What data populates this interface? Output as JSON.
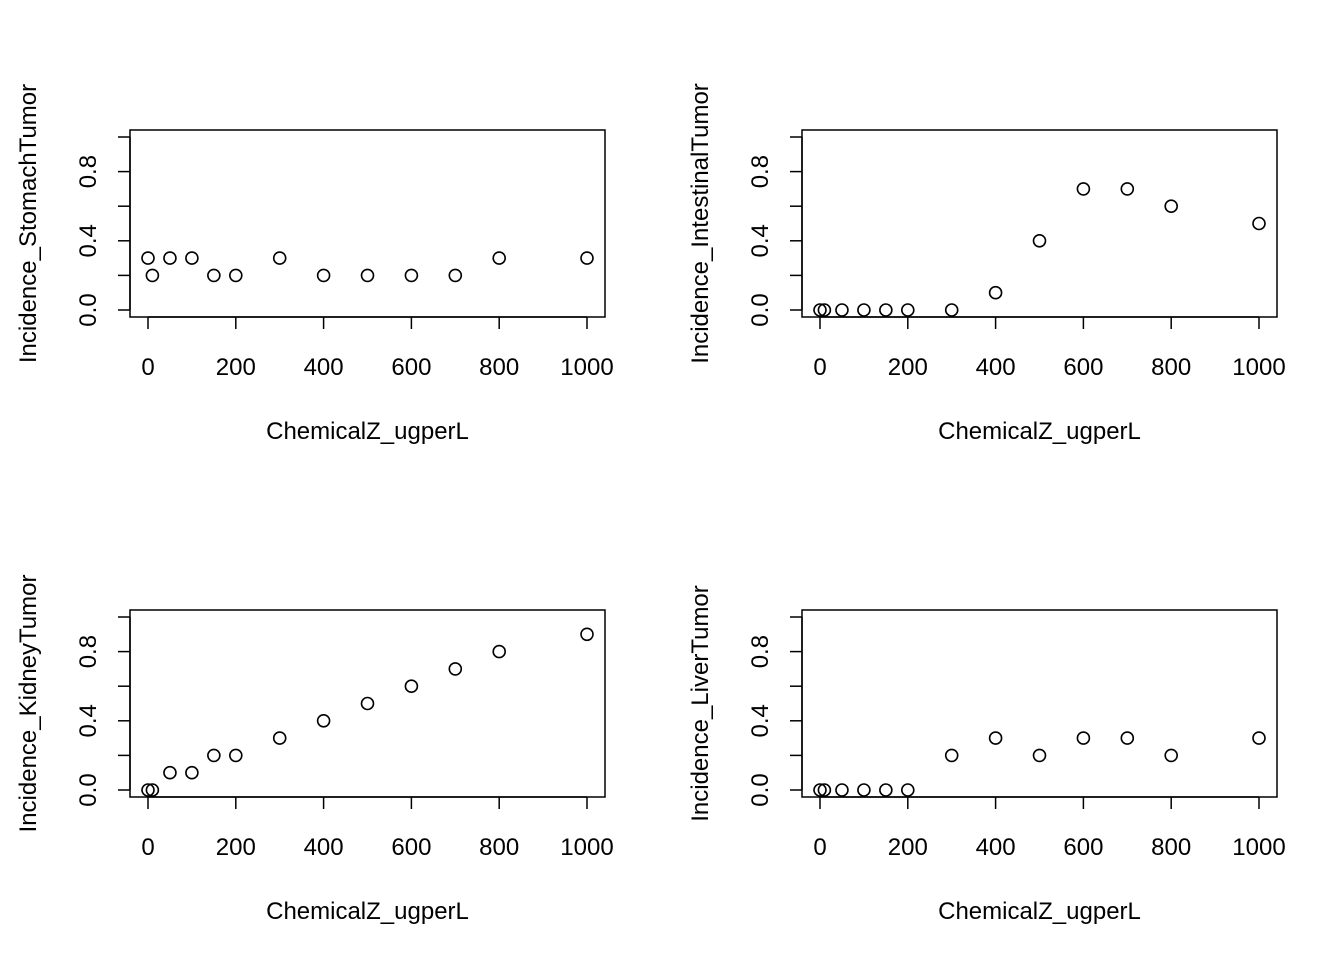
{
  "chart_data": [
    {
      "type": "scatter",
      "xlabel": "ChemicalZ_ugperL",
      "ylabel": "Incidence_StomachTumor",
      "xlim": [
        0,
        1000
      ],
      "ylim": [
        0,
        1
      ],
      "xticks": [
        "0",
        "200",
        "400",
        "600",
        "800",
        "1000"
      ],
      "yticks": [
        "0.0",
        "0.4",
        "0.8"
      ],
      "grid": false,
      "x": [
        0,
        10,
        50,
        100,
        150,
        200,
        300,
        400,
        500,
        600,
        700,
        800,
        1000
      ],
      "y": [
        0.3,
        0.2,
        0.3,
        0.3,
        0.2,
        0.2,
        0.3,
        0.2,
        0.2,
        0.2,
        0.2,
        0.3,
        0.3
      ]
    },
    {
      "type": "scatter",
      "xlabel": "ChemicalZ_ugperL",
      "ylabel": "Incidence_IntestinalTumor",
      "xlim": [
        0,
        1000
      ],
      "ylim": [
        0,
        1
      ],
      "xticks": [
        "0",
        "200",
        "400",
        "600",
        "800",
        "1000"
      ],
      "yticks": [
        "0.0",
        "0.4",
        "0.8"
      ],
      "grid": false,
      "x": [
        0,
        10,
        50,
        100,
        150,
        200,
        300,
        400,
        500,
        600,
        700,
        800,
        1000
      ],
      "y": [
        0.0,
        0.0,
        0.0,
        0.0,
        0.0,
        0.0,
        0.0,
        0.1,
        0.4,
        0.7,
        0.7,
        0.6,
        0.5
      ]
    },
    {
      "type": "scatter",
      "xlabel": "ChemicalZ_ugperL",
      "ylabel": "Incidence_KidneyTumor",
      "xlim": [
        0,
        1000
      ],
      "ylim": [
        0,
        1
      ],
      "xticks": [
        "0",
        "200",
        "400",
        "600",
        "800",
        "1000"
      ],
      "yticks": [
        "0.0",
        "0.4",
        "0.8"
      ],
      "grid": false,
      "x": [
        0,
        10,
        50,
        100,
        150,
        200,
        300,
        400,
        500,
        600,
        700,
        800,
        1000
      ],
      "y": [
        0.0,
        0.0,
        0.1,
        0.1,
        0.2,
        0.2,
        0.3,
        0.4,
        0.5,
        0.6,
        0.7,
        0.8,
        0.9
      ]
    },
    {
      "type": "scatter",
      "xlabel": "ChemicalZ_ugperL",
      "ylabel": "Incidence_LiverTumor",
      "xlim": [
        0,
        1000
      ],
      "ylim": [
        0,
        1
      ],
      "xticks": [
        "0",
        "200",
        "400",
        "600",
        "800",
        "1000"
      ],
      "yticks": [
        "0.0",
        "0.4",
        "0.8"
      ],
      "grid": false,
      "x": [
        0,
        10,
        50,
        100,
        150,
        200,
        300,
        400,
        500,
        600,
        700,
        800,
        1000
      ],
      "y": [
        0.0,
        0.0,
        0.0,
        0.0,
        0.0,
        0.0,
        0.2,
        0.3,
        0.2,
        0.3,
        0.3,
        0.2,
        0.3
      ]
    }
  ]
}
